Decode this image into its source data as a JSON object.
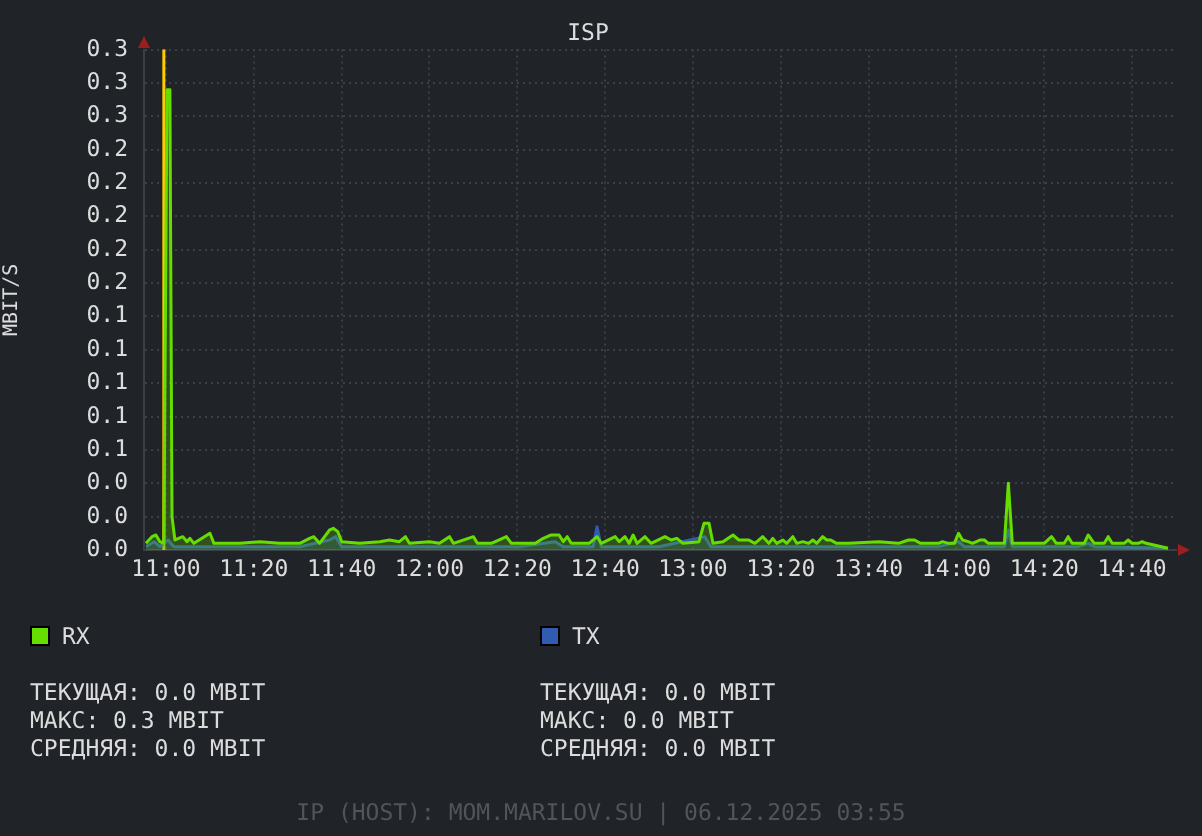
{
  "chart_data": {
    "type": "area",
    "title": "ISP",
    "ylabel": "MBIT/S",
    "xlim": [
      10.9167,
      14.8333
    ],
    "xticks": [
      {
        "value": 11,
        "label": "11:00"
      },
      {
        "value": 11.3333,
        "label": "11:20"
      },
      {
        "value": 11.6667,
        "label": "11:40"
      },
      {
        "value": 12,
        "label": "12:00"
      },
      {
        "value": 12.3333,
        "label": "12:20"
      },
      {
        "value": 12.6667,
        "label": "12:40"
      },
      {
        "value": 13,
        "label": "13:00"
      },
      {
        "value": 13.3333,
        "label": "13:20"
      },
      {
        "value": 13.6667,
        "label": "13:40"
      },
      {
        "value": 14,
        "label": "14:00"
      },
      {
        "value": 14.3333,
        "label": "14:20"
      },
      {
        "value": 14.6667,
        "label": "14:40"
      }
    ],
    "ylim": [
      0,
      0.3
    ],
    "yticks": [
      {
        "value": 0,
        "label": "0.0"
      },
      {
        "value": 0.02,
        "label": "0.0"
      },
      {
        "value": 0.04,
        "label": "0.0"
      },
      {
        "value": 0.06,
        "label": "0.1"
      },
      {
        "value": 0.08,
        "label": "0.1"
      },
      {
        "value": 0.1,
        "label": "0.1"
      },
      {
        "value": 0.12,
        "label": "0.1"
      },
      {
        "value": 0.14,
        "label": "0.1"
      },
      {
        "value": 0.16,
        "label": "0.2"
      },
      {
        "value": 0.18,
        "label": "0.2"
      },
      {
        "value": 0.2,
        "label": "0.2"
      },
      {
        "value": 0.22,
        "label": "0.2"
      },
      {
        "value": 0.24,
        "label": "0.2"
      },
      {
        "value": 0.26,
        "label": "0.3"
      },
      {
        "value": 0.28,
        "label": "0.3"
      },
      {
        "value": 0.3,
        "label": "0.3"
      }
    ],
    "grid": true,
    "legend": "bottom",
    "marker": "none",
    "series": [
      {
        "name": "RX",
        "color": "#66dd00",
        "x": [
          10.924,
          10.947,
          10.962,
          10.977,
          10.992,
          11.004,
          11.015,
          11.023,
          11.034,
          11.064,
          11.08,
          11.091,
          11.106,
          11.167,
          11.182,
          11.28,
          11.356,
          11.432,
          11.508,
          11.545,
          11.561,
          11.583,
          11.621,
          11.636,
          11.652,
          11.667,
          11.735,
          11.811,
          11.848,
          11.886,
          11.909,
          11.924,
          12.0,
          12.038,
          12.076,
          12.091,
          12.167,
          12.182,
          12.235,
          12.292,
          12.311,
          12.402,
          12.432,
          12.462,
          12.492,
          12.508,
          12.523,
          12.538,
          12.606,
          12.636,
          12.652,
          12.705,
          12.72,
          12.742,
          12.758,
          12.773,
          12.788,
          12.818,
          12.841,
          12.894,
          12.917,
          12.939,
          12.962,
          13.023,
          13.042,
          13.061,
          13.076,
          13.114,
          13.152,
          13.174,
          13.212,
          13.235,
          13.265,
          13.288,
          13.303,
          13.318,
          13.341,
          13.356,
          13.379,
          13.394,
          13.417,
          13.439,
          13.455,
          13.47,
          13.492,
          13.508,
          13.523,
          13.545,
          13.591,
          13.705,
          13.78,
          13.818,
          13.841,
          13.864,
          13.932,
          13.947,
          13.97,
          13.992,
          14.008,
          14.023,
          14.045,
          14.061,
          14.091,
          14.106,
          14.121,
          14.182,
          14.197,
          14.212,
          14.273,
          14.333,
          14.361,
          14.379,
          14.409,
          14.424,
          14.439,
          14.485,
          14.5,
          14.523,
          14.561,
          14.576,
          14.591,
          14.636,
          14.652,
          14.667,
          14.689,
          14.705,
          14.72,
          14.803
        ],
        "values": [
          0.004,
          0.008,
          0.009,
          0.005,
          0.004,
          0.276,
          0.276,
          0.02,
          0.006,
          0.008,
          0.005,
          0.007,
          0.004,
          0.01,
          0.004,
          0.004,
          0.005,
          0.004,
          0.004,
          0.007,
          0.008,
          0.004,
          0.012,
          0.013,
          0.011,
          0.005,
          0.004,
          0.005,
          0.006,
          0.005,
          0.008,
          0.004,
          0.005,
          0.004,
          0.008,
          0.004,
          0.008,
          0.004,
          0.004,
          0.008,
          0.004,
          0.004,
          0.007,
          0.009,
          0.009,
          0.005,
          0.008,
          0.004,
          0.004,
          0.008,
          0.004,
          0.008,
          0.005,
          0.008,
          0.004,
          0.009,
          0.004,
          0.008,
          0.004,
          0.008,
          0.006,
          0.007,
          0.004,
          0.005,
          0.016,
          0.016,
          0.004,
          0.005,
          0.009,
          0.006,
          0.006,
          0.004,
          0.008,
          0.004,
          0.007,
          0.004,
          0.006,
          0.004,
          0.008,
          0.004,
          0.005,
          0.004,
          0.006,
          0.004,
          0.008,
          0.006,
          0.006,
          0.004,
          0.004,
          0.005,
          0.004,
          0.006,
          0.006,
          0.004,
          0.004,
          0.005,
          0.004,
          0.004,
          0.01,
          0.006,
          0.005,
          0.004,
          0.006,
          0.006,
          0.004,
          0.004,
          0.04,
          0.004,
          0.004,
          0.004,
          0.008,
          0.004,
          0.004,
          0.008,
          0.004,
          0.004,
          0.009,
          0.004,
          0.004,
          0.008,
          0.004,
          0.004,
          0.006,
          0.004,
          0.004,
          0.005,
          0.004,
          0.001
        ]
      },
      {
        "name": "TX",
        "color": "#2f5cb0",
        "x": [
          10.924,
          10.955,
          10.977,
          11.008,
          11.03,
          11.28,
          11.508,
          11.621,
          11.644,
          11.667,
          11.886,
          12.114,
          12.341,
          12.477,
          12.508,
          12.621,
          12.636,
          12.652,
          12.871,
          13.045,
          13.068,
          13.25,
          13.477,
          13.705,
          13.932,
          14.008,
          14.03,
          14.182,
          14.197,
          14.212,
          14.462,
          14.5,
          14.523,
          14.803
        ],
        "values": [
          0.002,
          0.005,
          0.002,
          0.006,
          0.002,
          0.002,
          0.002,
          0.006,
          0.008,
          0.002,
          0.002,
          0.002,
          0.002,
          0.005,
          0.002,
          0.002,
          0.014,
          0.002,
          0.002,
          0.008,
          0.002,
          0.002,
          0.002,
          0.002,
          0.002,
          0.005,
          0.002,
          0.002,
          0.012,
          0.002,
          0.002,
          0.004,
          0.002,
          0.001
        ]
      }
    ],
    "ref_lines": [
      {
        "axis": "x",
        "value": 10.992,
        "color": "#ffcc00"
      }
    ],
    "annotations": [
      "ТЕКУЩАЯ: 0.0 MBIT",
      "МАКС: 0.3 MBIT",
      "СРЕДНЯЯ: 0.0 MBIT",
      "ТЕКУЩАЯ: 0.0 MBIT",
      "МАКС: 0.0 MBIT",
      "СРЕДНЯЯ: 0.0 MBIT",
      "IP (HOST): MOM.MARILOV.SU | 06.12.2025 03:55"
    ]
  }
}
